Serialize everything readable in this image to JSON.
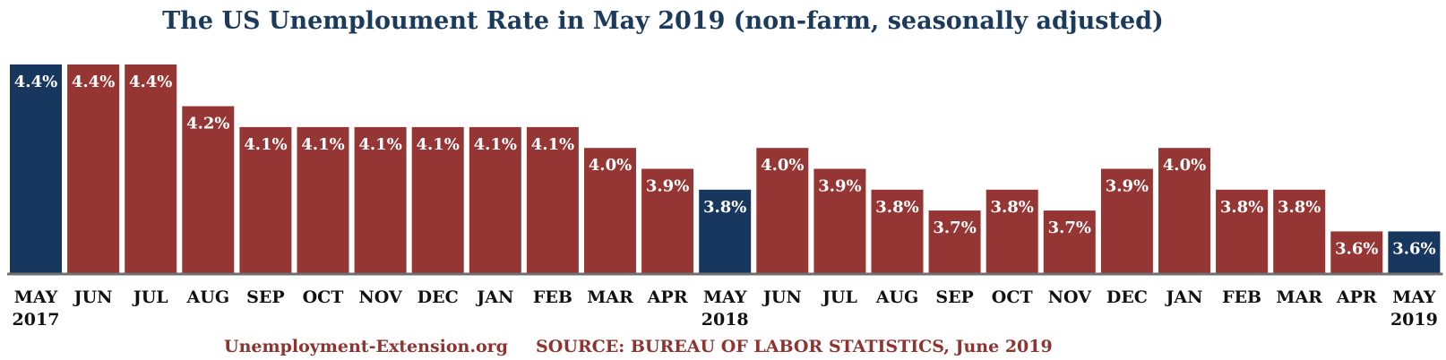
{
  "chart_data": {
    "type": "bar",
    "title": "The US Unemploument Rate in May 2019 (non-farm, seasonally adjusted)",
    "categories": [
      "MAY",
      "JUN",
      "JUL",
      "AUG",
      "SEP",
      "OCT",
      "NOV",
      "DEC",
      "JAN",
      "FEB",
      "MAR",
      "APR",
      "MAY",
      "JUN",
      "JUL",
      "AUG",
      "SEP",
      "OCT",
      "NOV",
      "DEC",
      "JAN",
      "FEB",
      "MAR",
      "APR",
      "MAY"
    ],
    "year_labels": [
      "2017",
      "",
      "",
      "",
      "",
      "",
      "",
      "",
      "",
      "",
      "",
      "",
      "2018",
      "",
      "",
      "",
      "",
      "",
      "",
      "",
      "",
      "",
      "",
      "",
      "2019"
    ],
    "values": [
      4.4,
      4.4,
      4.4,
      4.2,
      4.1,
      4.1,
      4.1,
      4.1,
      4.1,
      4.1,
      4.0,
      3.9,
      3.8,
      4.0,
      3.9,
      3.8,
      3.7,
      3.8,
      3.7,
      3.9,
      4.0,
      3.8,
      3.8,
      3.6,
      3.6
    ],
    "value_labels": [
      "4.4%",
      "4.4%",
      "4.4%",
      "4.2%",
      "4.1%",
      "4.1%",
      "4.1%",
      "4.1%",
      "4.1%",
      "4.1%",
      "4.0%",
      "3.9%",
      "3.8%",
      "4.0%",
      "3.9%",
      "3.8%",
      "3.7%",
      "3.8%",
      "3.7%",
      "3.9%",
      "4.0%",
      "3.8%",
      "3.8%",
      "3.6%",
      "3.6%"
    ],
    "highlight": [
      true,
      false,
      false,
      false,
      false,
      false,
      false,
      false,
      false,
      false,
      false,
      false,
      true,
      false,
      false,
      false,
      false,
      false,
      false,
      false,
      false,
      false,
      false,
      false,
      true
    ],
    "ylim": [
      3.4,
      4.4
    ],
    "grid": false,
    "colors": {
      "default": "#963634",
      "highlight": "#17375e",
      "axis": "#6f6f6f"
    }
  },
  "footer": {
    "site": "Unemployment-Extension.org",
    "source": "SOURCE: BUREAU OF LABOR STATISTICS, June 2019"
  }
}
